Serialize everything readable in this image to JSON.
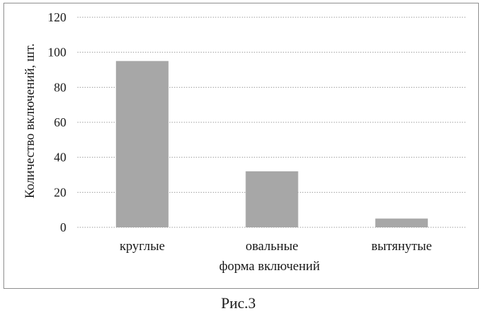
{
  "chart_data": {
    "type": "bar",
    "categories": [
      "круглые",
      "овальные",
      "вытянутые"
    ],
    "values": [
      95,
      32,
      5
    ],
    "xlabel": "форма включений",
    "ylabel": "Количество включений, шт.",
    "ylim": [
      0,
      120
    ],
    "yticks": [
      0,
      20,
      40,
      60,
      80,
      100,
      120
    ],
    "grid": true,
    "legend": "none",
    "bar_color": "#a7a7a7",
    "grid_color": "#9a9a9a"
  },
  "figure_caption": "Рис.3"
}
